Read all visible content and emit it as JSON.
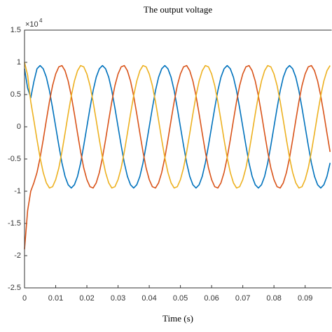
{
  "chart_data": {
    "type": "line",
    "title": "The output voltage",
    "x_label": "Time (s)",
    "y_exponent_base": "×10",
    "y_exponent": "4",
    "xlim": [
      0,
      0.0985
    ],
    "ylim": [
      -2.5,
      1.5
    ],
    "xticks": [
      0,
      0.01,
      0.02,
      0.03,
      0.04,
      0.05,
      0.06,
      0.07,
      0.08,
      0.09
    ],
    "yticks": [
      -2.5,
      -2,
      -1.5,
      -1,
      -0.5,
      0,
      0.5,
      1,
      1.5
    ],
    "grid": false,
    "x": [
      0,
      0.001,
      0.002,
      0.003,
      0.004,
      0.005,
      0.006,
      0.007,
      0.008,
      0.009,
      0.01,
      0.011,
      0.012,
      0.013,
      0.014,
      0.015,
      0.016,
      0.017,
      0.018,
      0.019,
      0.02,
      0.021,
      0.022,
      0.023,
      0.024,
      0.025,
      0.026,
      0.027,
      0.028,
      0.029,
      0.03,
      0.031,
      0.032,
      0.033,
      0.034,
      0.035,
      0.036,
      0.037,
      0.038,
      0.039,
      0.04,
      0.041,
      0.042,
      0.043,
      0.044,
      0.045,
      0.046,
      0.047,
      0.048,
      0.049,
      0.05,
      0.051,
      0.052,
      0.053,
      0.054,
      0.055,
      0.056,
      0.057,
      0.058,
      0.059,
      0.06,
      0.061,
      0.062,
      0.063,
      0.064,
      0.065,
      0.066,
      0.067,
      0.068,
      0.069,
      0.07,
      0.071,
      0.072,
      0.073,
      0.074,
      0.075,
      0.076,
      0.077,
      0.078,
      0.079,
      0.08,
      0.081,
      0.082,
      0.083,
      0.084,
      0.085,
      0.086,
      0.087,
      0.088,
      0.089,
      0.09,
      0.091,
      0.092,
      0.093,
      0.094,
      0.095,
      0.096,
      0.097,
      0.098
    ],
    "series": [
      {
        "color": "#0072BD",
        "values": [
          0.9,
          0.6,
          0.45,
          0.7,
          0.9,
          0.95,
          0.9,
          0.77,
          0.56,
          0.29,
          0,
          -0.29,
          -0.56,
          -0.77,
          -0.9,
          -0.95,
          -0.9,
          -0.77,
          -0.56,
          -0.29,
          0,
          0.29,
          0.56,
          0.77,
          0.9,
          0.95,
          0.9,
          0.77,
          0.56,
          0.29,
          0,
          -0.29,
          -0.56,
          -0.77,
          -0.9,
          -0.95,
          -0.9,
          -0.77,
          -0.56,
          -0.29,
          0,
          0.29,
          0.56,
          0.77,
          0.9,
          0.95,
          0.9,
          0.77,
          0.56,
          0.29,
          0,
          -0.29,
          -0.56,
          -0.77,
          -0.9,
          -0.95,
          -0.9,
          -0.77,
          -0.56,
          -0.29,
          0,
          0.29,
          0.56,
          0.77,
          0.9,
          0.95,
          0.9,
          0.77,
          0.56,
          0.29,
          0,
          -0.29,
          -0.56,
          -0.77,
          -0.9,
          -0.95,
          -0.9,
          -0.77,
          -0.56,
          -0.29,
          0,
          0.29,
          0.56,
          0.77,
          0.9,
          0.95,
          0.9,
          0.77,
          0.56,
          0.29,
          0,
          -0.29,
          -0.56,
          -0.77,
          -0.9,
          -0.95,
          -0.9,
          -0.77,
          -0.56
        ]
      },
      {
        "color": "#D95319",
        "values": [
          -1.9,
          -1.3,
          -1.0,
          -0.87,
          -0.71,
          -0.48,
          -0.2,
          0.1,
          0.39,
          0.64,
          0.82,
          0.93,
          0.95,
          0.87,
          0.71,
          0.48,
          0.2,
          -0.1,
          -0.39,
          -0.64,
          -0.82,
          -0.93,
          -0.95,
          -0.87,
          -0.71,
          -0.48,
          -0.2,
          0.1,
          0.39,
          0.64,
          0.82,
          0.93,
          0.95,
          0.87,
          0.71,
          0.48,
          0.2,
          -0.1,
          -0.39,
          -0.64,
          -0.82,
          -0.93,
          -0.95,
          -0.87,
          -0.71,
          -0.48,
          -0.2,
          0.1,
          0.39,
          0.64,
          0.82,
          0.93,
          0.95,
          0.87,
          0.71,
          0.48,
          0.2,
          -0.1,
          -0.39,
          -0.64,
          -0.82,
          -0.93,
          -0.95,
          -0.87,
          -0.71,
          -0.48,
          -0.2,
          0.1,
          0.39,
          0.64,
          0.82,
          0.93,
          0.95,
          0.87,
          0.71,
          0.48,
          0.2,
          -0.1,
          -0.39,
          -0.64,
          -0.82,
          -0.93,
          -0.95,
          -0.87,
          -0.71,
          -0.48,
          -0.2,
          0.1,
          0.39,
          0.64,
          0.82,
          0.93,
          0.95,
          0.87,
          0.71,
          0.48,
          0.2,
          -0.1,
          -0.39
        ]
      },
      {
        "color": "#EDB120",
        "values": [
          1.0,
          0.8,
          0.39,
          0.1,
          -0.2,
          -0.48,
          -0.71,
          -0.87,
          -0.95,
          -0.93,
          -0.82,
          -0.64,
          -0.39,
          -0.1,
          0.2,
          0.48,
          0.71,
          0.87,
          0.95,
          0.93,
          0.82,
          0.64,
          0.39,
          0.1,
          -0.2,
          -0.48,
          -0.71,
          -0.87,
          -0.95,
          -0.93,
          -0.82,
          -0.64,
          -0.39,
          -0.1,
          0.2,
          0.48,
          0.71,
          0.87,
          0.95,
          0.93,
          0.82,
          0.64,
          0.39,
          0.1,
          -0.2,
          -0.48,
          -0.71,
          -0.87,
          -0.95,
          -0.93,
          -0.82,
          -0.64,
          -0.39,
          -0.1,
          0.2,
          0.48,
          0.71,
          0.87,
          0.95,
          0.93,
          0.82,
          0.64,
          0.39,
          0.1,
          -0.2,
          -0.48,
          -0.71,
          -0.87,
          -0.95,
          -0.93,
          -0.82,
          -0.64,
          -0.39,
          -0.1,
          0.2,
          0.48,
          0.71,
          0.87,
          0.95,
          0.93,
          0.82,
          0.64,
          0.39,
          0.1,
          -0.2,
          -0.48,
          -0.71,
          -0.87,
          -0.95,
          -0.93,
          -0.82,
          -0.64,
          -0.39,
          -0.1,
          0.2,
          0.48,
          0.71,
          0.87,
          0.95
        ]
      }
    ]
  }
}
